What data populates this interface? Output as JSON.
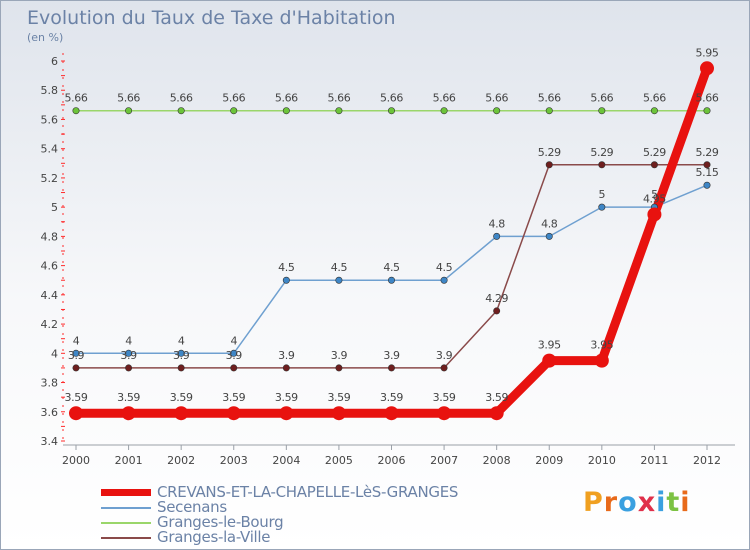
{
  "title": "Evolution du Taux de Taxe d'Habitation",
  "unit_label": "(en %)",
  "brand": {
    "text": "Proxiti",
    "letters": [
      {
        "ch": "P",
        "color": "#f0a020"
      },
      {
        "ch": "r",
        "color": "#e86a1a"
      },
      {
        "ch": "o",
        "color": "#3aa0e0"
      },
      {
        "ch": "x",
        "color": "#e0304a"
      },
      {
        "ch": "i",
        "color": "#3aa0e0"
      },
      {
        "ch": "t",
        "color": "#7cc243"
      },
      {
        "ch": "i",
        "color": "#e86a1a"
      }
    ]
  },
  "chart_data": {
    "type": "line",
    "x": [
      "2000",
      "2001",
      "2002",
      "2003",
      "2004",
      "2005",
      "2006",
      "2007",
      "2008",
      "2009",
      "2010",
      "2011",
      "2012"
    ],
    "ylim": [
      3.4,
      6
    ],
    "yticks": [
      "3.4",
      "3.6",
      "3.8",
      "4",
      "4.2",
      "4.4",
      "4.6",
      "4.8",
      "5",
      "5.2",
      "5.4",
      "5.6",
      "5.8",
      "6"
    ],
    "grid": false,
    "legend_position": "bottom",
    "series": [
      {
        "name": "CREVANS-ET-LA-CHAPELLE-LèS-GRANGES",
        "color": "#e8120f",
        "marker_color": "#e8120f",
        "values": [
          3.59,
          3.59,
          3.59,
          3.59,
          3.59,
          3.59,
          3.59,
          3.59,
          3.59,
          3.95,
          3.95,
          4.95,
          5.95
        ],
        "labels": [
          "3.59",
          "3.59",
          "3.59",
          "3.59",
          "3.59",
          "3.59",
          "3.59",
          "3.59",
          "3.59",
          "3.95",
          "3.95",
          "4.95",
          "5.95"
        ],
        "bold": true
      },
      {
        "name": "Secenans",
        "color": "#6fa0d0",
        "marker_color": "#3e86c6",
        "values": [
          4,
          4,
          4,
          4,
          4.5,
          4.5,
          4.5,
          4.5,
          4.8,
          4.8,
          5,
          5,
          5.15
        ],
        "labels": [
          "4",
          "4",
          "4",
          "4",
          "4.5",
          "4.5",
          "4.5",
          "4.5",
          "4.8",
          "4.8",
          "5",
          "5",
          "5.15"
        ],
        "bold": false
      },
      {
        "name": "Granges-le-Bourg",
        "color": "#9ad66a",
        "marker_color": "#6cc43a",
        "values": [
          5.66,
          5.66,
          5.66,
          5.66,
          5.66,
          5.66,
          5.66,
          5.66,
          5.66,
          5.66,
          5.66,
          5.66,
          5.66
        ],
        "labels": [
          "5.66",
          "5.66",
          "5.66",
          "5.66",
          "5.66",
          "5.66",
          "5.66",
          "5.66",
          "5.66",
          "5.66",
          "5.66",
          "5.66",
          "5.66"
        ],
        "bold": false
      },
      {
        "name": "Granges-la-Ville",
        "color": "#8a4a4a",
        "marker_color": "#6e1e1e",
        "values": [
          3.9,
          3.9,
          3.9,
          3.9,
          3.9,
          3.9,
          3.9,
          3.9,
          4.29,
          5.29,
          5.29,
          5.29,
          5.29
        ],
        "labels": [
          "3.9",
          "3.9",
          "3.9",
          "3.9",
          "3.9",
          "3.9",
          "3.9",
          "3.9",
          "4.29",
          "5.29",
          "5.29",
          "5.29",
          "5.29"
        ],
        "bold": false
      }
    ]
  }
}
